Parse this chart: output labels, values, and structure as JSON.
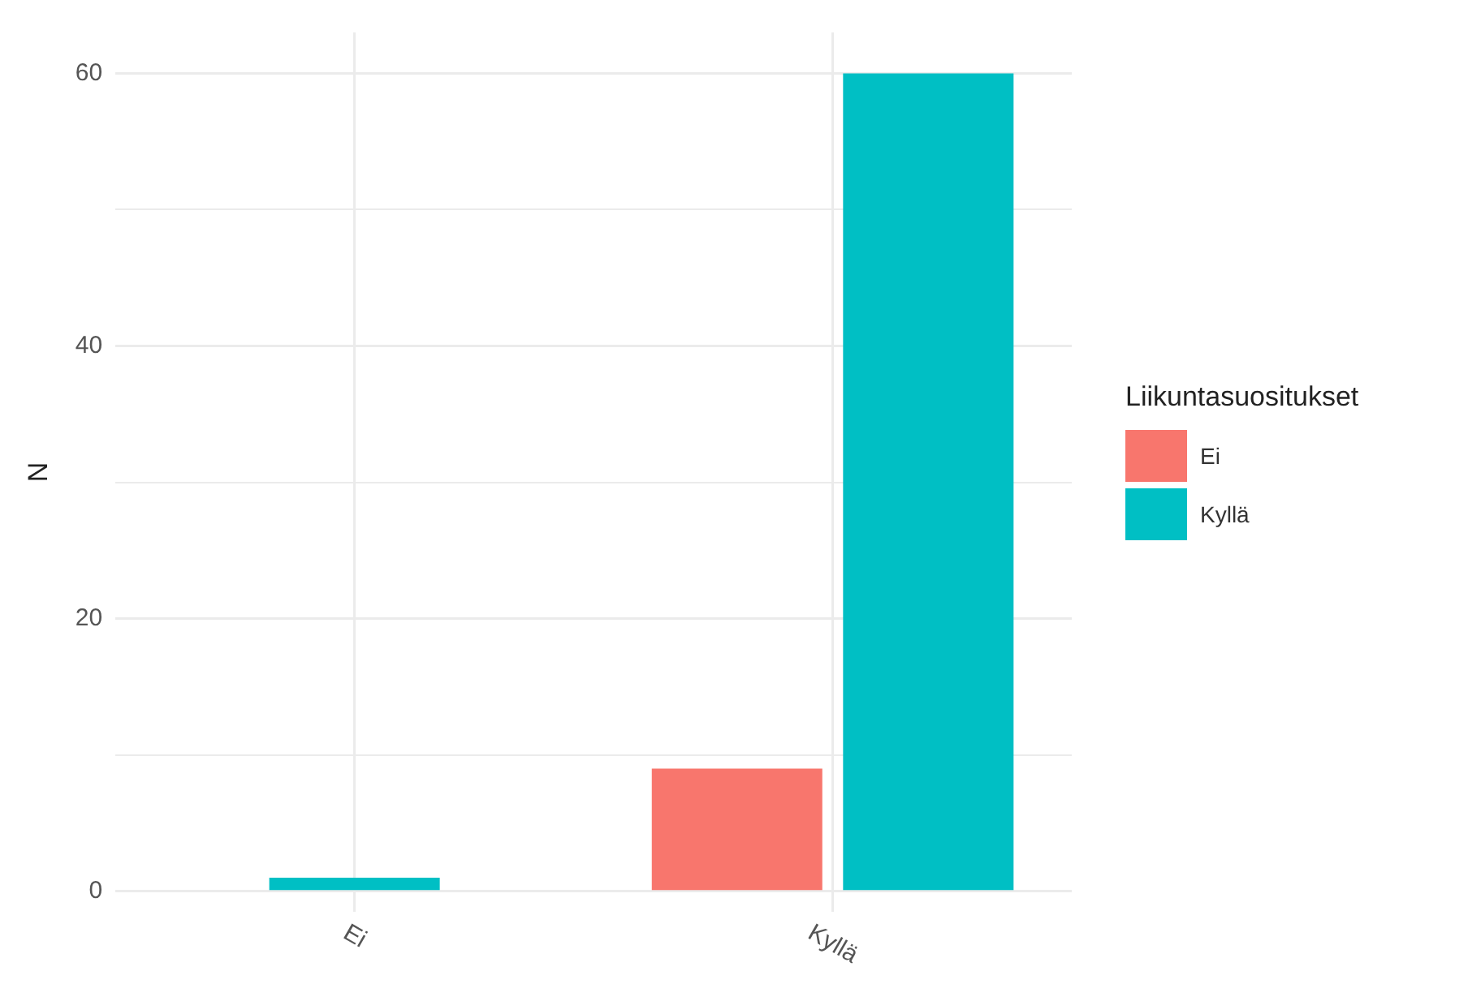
{
  "chart_data": {
    "type": "bar",
    "ylabel": "N",
    "categories": [
      "Ei",
      "Kyllä"
    ],
    "series": [
      {
        "name": "Ei",
        "color": "#f8766d",
        "values": [
          null,
          9
        ]
      },
      {
        "name": "Kyllä",
        "color": "#00bfc4",
        "values": [
          1,
          60
        ]
      }
    ],
    "ylim": [
      -1.5,
      63
    ],
    "yticks": [
      0,
      {
        "value": 10,
        "label": null
      },
      20,
      {
        "value": 30,
        "label": null
      },
      40,
      {
        "value": 50,
        "label": null
      },
      60
    ],
    "grid": true,
    "legend": "right",
    "legend_title": "Liikuntasuositukset"
  }
}
